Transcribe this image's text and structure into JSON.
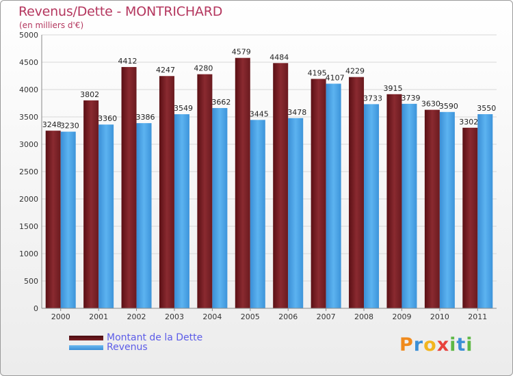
{
  "chart_data": {
    "type": "bar",
    "title": "Revenus/Dette - MONTRICHARD",
    "subtitle": "(en milliers d'€)",
    "categories": [
      "2000",
      "2001",
      "2002",
      "2003",
      "2004",
      "2005",
      "2006",
      "2007",
      "2008",
      "2009",
      "2010",
      "2011"
    ],
    "series": [
      {
        "name": "Montant de la Dette",
        "color": "#7a1f24",
        "values": [
          3248,
          3802,
          4412,
          4247,
          4280,
          4579,
          4484,
          4195,
          4229,
          3915,
          3630,
          3302
        ]
      },
      {
        "name": "Revenus",
        "color": "#4aa3e6",
        "values": [
          3230,
          3360,
          3386,
          3549,
          3662,
          3445,
          3478,
          4107,
          3733,
          3739,
          3590,
          3550
        ]
      }
    ],
    "ylim": [
      0,
      5000
    ],
    "yticks": [
      0,
      500,
      1000,
      1500,
      2000,
      2500,
      3000,
      3500,
      4000,
      4500,
      5000
    ],
    "grid": true
  },
  "brand": {
    "letters": [
      "P",
      "r",
      "o",
      "x",
      "i",
      "t",
      "i"
    ],
    "colors": [
      "#f08a1c",
      "#3b8fd6",
      "#f2b51f",
      "#e8423d",
      "#5db845",
      "#3b8fd6",
      "#5db845"
    ]
  }
}
